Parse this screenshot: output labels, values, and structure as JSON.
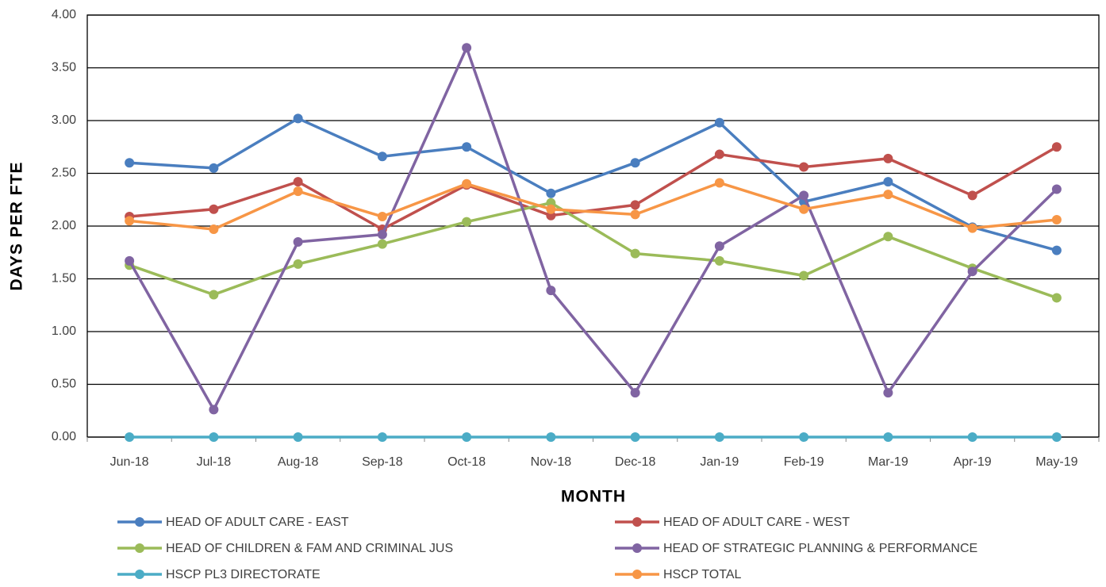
{
  "chart_data": {
    "type": "line",
    "x_label": "MONTH",
    "y_label": "DAYS PER FTE",
    "categories": [
      "Jun-18",
      "Jul-18",
      "Aug-18",
      "Sep-18",
      "Oct-18",
      "Nov-18",
      "Dec-18",
      "Jan-19",
      "Feb-19",
      "Mar-19",
      "Apr-19",
      "May-19"
    ],
    "series": [
      {
        "name": "HEAD OF ADULT CARE - EAST",
        "color": "#4a7ebf",
        "values": [
          2.6,
          2.55,
          3.02,
          2.66,
          2.75,
          2.31,
          2.6,
          2.98,
          2.23,
          2.42,
          1.99,
          1.77
        ]
      },
      {
        "name": "HEAD OF ADULT CARE - WEST",
        "color": "#c0504d",
        "values": [
          2.09,
          2.16,
          2.42,
          1.97,
          2.39,
          2.1,
          2.2,
          2.68,
          2.56,
          2.64,
          2.29,
          2.75
        ]
      },
      {
        "name": "HEAD OF CHILDREN & FAM AND CRIMINAL JUS",
        "color": "#9bbb59",
        "values": [
          1.63,
          1.35,
          1.64,
          1.83,
          2.04,
          2.22,
          1.74,
          1.67,
          1.53,
          1.9,
          1.6,
          1.32
        ]
      },
      {
        "name": "HEAD OF STRATEGIC PLANNING & PERFORMANCE",
        "color": "#8064a2",
        "values": [
          1.67,
          0.26,
          1.85,
          1.92,
          3.69,
          1.39,
          0.42,
          1.81,
          2.29,
          0.42,
          1.57,
          2.35
        ]
      },
      {
        "name": "HSCP PL3 DIRECTORATE",
        "color": "#4bacc6",
        "values": [
          0,
          0,
          0,
          0,
          0,
          0,
          0,
          0,
          0,
          0,
          0,
          0
        ]
      },
      {
        "name": "HSCP TOTAL",
        "color": "#f79646",
        "values": [
          2.05,
          1.97,
          2.33,
          2.09,
          2.4,
          2.16,
          2.11,
          2.41,
          2.16,
          2.3,
          1.98,
          2.06
        ]
      }
    ],
    "ylim": [
      0,
      4
    ],
    "yticks": [
      {
        "value": 0,
        "label": "0.00"
      },
      {
        "value": 0.5,
        "label": "0.50"
      },
      {
        "value": 1,
        "label": "1.00"
      },
      {
        "value": 1.5,
        "label": "1.50"
      },
      {
        "value": 2,
        "label": "2.00"
      },
      {
        "value": 2.5,
        "label": "2.50"
      },
      {
        "value": 3,
        "label": "3.00"
      },
      {
        "value": 3.5,
        "label": "3.50"
      },
      {
        "value": 4,
        "label": "4.00"
      }
    ],
    "grid": true,
    "legend": "bottom"
  }
}
